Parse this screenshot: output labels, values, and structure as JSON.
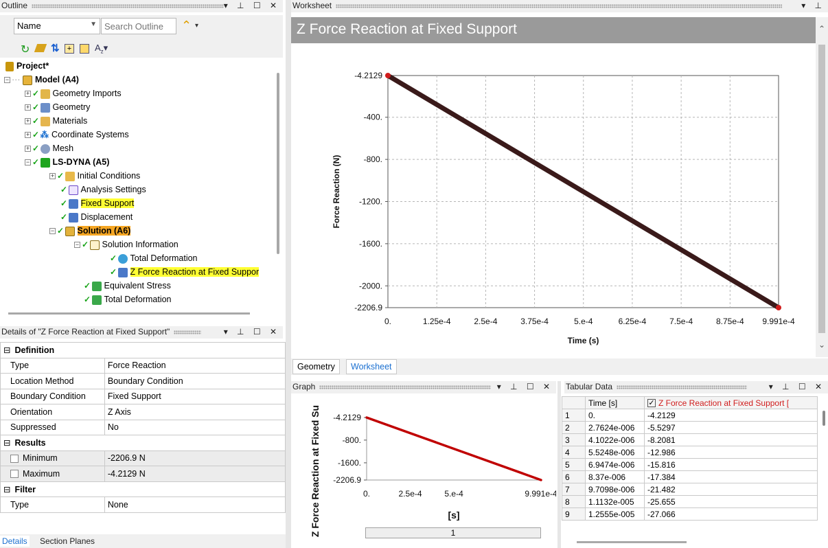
{
  "outline": {
    "title": "Outline",
    "filter_field": "Name",
    "search_placeholder": "Search Outline",
    "tree": [
      {
        "label": "Project*",
        "level": 0
      },
      {
        "label": "Model (A4)",
        "level": 1
      },
      {
        "label": "Geometry Imports",
        "level": 2
      },
      {
        "label": "Geometry",
        "level": 2
      },
      {
        "label": "Materials",
        "level": 2
      },
      {
        "label": "Coordinate Systems",
        "level": 2
      },
      {
        "label": "Mesh",
        "level": 2
      },
      {
        "label": "LS-DYNA (A5)",
        "level": 2
      },
      {
        "label": "Initial Conditions",
        "level": 3
      },
      {
        "label": "Analysis Settings",
        "level": 3
      },
      {
        "label": "Fixed Support",
        "level": 3
      },
      {
        "label": "Displacement",
        "level": 3
      },
      {
        "label": "Solution (A6)",
        "level": 3
      },
      {
        "label": "Solution Information",
        "level": 4
      },
      {
        "label": "Total Deformation",
        "level": 5
      },
      {
        "label": "Z Force Reaction at Fixed Suppor",
        "level": 5
      },
      {
        "label": "Equivalent Stress",
        "level": 4
      },
      {
        "label": "Total Deformation",
        "level": 4
      }
    ]
  },
  "details": {
    "title": "Details of \"Z Force Reaction at Fixed Support\"",
    "rows": [
      {
        "section": "Definition"
      },
      {
        "k": "Type",
        "v": "Force Reaction"
      },
      {
        "k": "Location Method",
        "v": "Boundary Condition"
      },
      {
        "k": "Boundary Condition",
        "v": "Fixed Support"
      },
      {
        "k": "Orientation",
        "v": "Z Axis"
      },
      {
        "k": "Suppressed",
        "v": "No"
      },
      {
        "section": "Results"
      },
      {
        "k": "Minimum",
        "v": "-2206.9 N"
      },
      {
        "k": "Maximum",
        "v": "-4.2129 N"
      },
      {
        "section": "Filter"
      },
      {
        "k": "Type",
        "v": "None"
      }
    ],
    "tabs": [
      "Details",
      "Section Planes"
    ]
  },
  "worksheet": {
    "panel_title": "Worksheet",
    "header": "Z Force Reaction at Fixed Support",
    "tabs": [
      "Geometry",
      "Worksheet"
    ]
  },
  "graph_panel": {
    "title": "Graph",
    "frame": "1"
  },
  "tabular": {
    "title": "Tabular Data",
    "col_time": "Time [s]",
    "col_value": "Z Force Reaction at Fixed Support [",
    "rows": [
      [
        "1",
        "0.",
        "-4.2129"
      ],
      [
        "2",
        "2.7624e-006",
        "-5.5297"
      ],
      [
        "3",
        "4.1022e-006",
        "-8.2081"
      ],
      [
        "4",
        "5.5248e-006",
        "-12.986"
      ],
      [
        "5",
        "6.9474e-006",
        "-15.816"
      ],
      [
        "6",
        "8.37e-006",
        "-17.384"
      ],
      [
        "7",
        "9.7098e-006",
        "-21.482"
      ],
      [
        "8",
        "1.1132e-005",
        "-25.655"
      ],
      [
        "9",
        "1.2555e-005",
        "-27.066"
      ]
    ]
  },
  "chart_data": [
    {
      "type": "line",
      "xlabel": "Time (s)",
      "ylabel": "Force Reaction (N)",
      "x_ticks": [
        "0.",
        "1.25e-4",
        "2.5e-4",
        "3.75e-4",
        "5.e-4",
        "6.25e-4",
        "7.5e-4",
        "8.75e-4",
        "9.991e-4"
      ],
      "y_ticks": [
        "-4.2129",
        "-400.",
        "-800.",
        "-1200.",
        "-1600.",
        "-2000.",
        "-2206.9"
      ],
      "xlim": [
        0,
        0.0009991
      ],
      "ylim": [
        -2206.9,
        -4.2129
      ],
      "series": [
        {
          "x": [
            0,
            0.0009991
          ],
          "y": [
            -4.2129,
            -2206.9
          ],
          "color": "#c00000"
        }
      ],
      "grid": true
    },
    {
      "type": "line",
      "xlabel": "[s]",
      "ylabel": "Z Force Reaction at Fixed Su",
      "x_ticks": [
        "0.",
        "2.5e-4",
        "5.e-4",
        "9.991e-4"
      ],
      "y_ticks": [
        "-4.2129",
        "-800.",
        "-1600.",
        "-2206.9"
      ],
      "xlim": [
        0,
        0.0009991
      ],
      "ylim": [
        -2206.9,
        -4.2129
      ],
      "series": [
        {
          "x": [
            0,
            0.0009991
          ],
          "y": [
            -4.2129,
            -2206.9
          ],
          "color": "#c00000"
        }
      ],
      "grid": false
    }
  ]
}
